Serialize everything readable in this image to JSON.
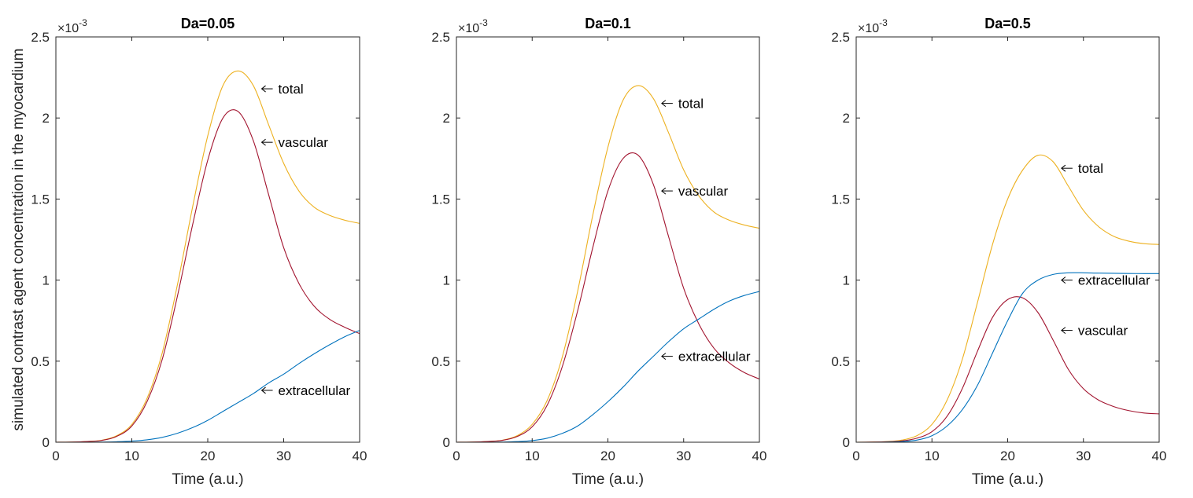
{
  "figure": {
    "ylabel": "simulated contrast agent concentration in the myocardium",
    "xlabel": "Time (a.u.)",
    "y_multiplier": {
      "base": "×10",
      "exponent": "-3"
    }
  },
  "colors": {
    "total": "#EDB120",
    "vascular": "#A2142F",
    "extracellular": "#0072BD",
    "axes": "#262626",
    "arrow": "#000000"
  },
  "chart_data": [
    {
      "type": "line",
      "title": "Da=0.05",
      "xlabel": "Time (a.u.)",
      "ylabel": "simulated contrast agent concentration in the myocardium",
      "xlim": [
        0,
        40
      ],
      "ylim": [
        0,
        2.5
      ],
      "y_scale_factor": "1e-3",
      "x_ticks": [
        "0",
        "10",
        "20",
        "30",
        "40"
      ],
      "y_ticks": [
        "0",
        "0.5",
        "1",
        "1.5",
        "2",
        "2.5"
      ],
      "grid": false,
      "x": [
        0,
        2,
        4,
        6,
        8,
        10,
        12,
        14,
        16,
        18,
        20,
        22,
        24,
        26,
        28,
        30,
        32,
        34,
        36,
        38,
        40
      ],
      "series": [
        {
          "name": "total",
          "color_key": "total",
          "values": [
            0,
            0.001,
            0.004,
            0.012,
            0.04,
            0.11,
            0.27,
            0.55,
            0.97,
            1.45,
            1.89,
            2.2,
            2.29,
            2.2,
            1.96,
            1.72,
            1.55,
            1.45,
            1.4,
            1.37,
            1.35
          ]
        },
        {
          "name": "vascular",
          "color_key": "vascular",
          "values": [
            0,
            0.001,
            0.004,
            0.011,
            0.036,
            0.1,
            0.25,
            0.51,
            0.9,
            1.34,
            1.74,
            2.0,
            2.04,
            1.86,
            1.53,
            1.2,
            0.98,
            0.84,
            0.76,
            0.71,
            0.67
          ]
        },
        {
          "name": "extracellular",
          "color_key": "extracellular",
          "values": [
            0,
            0,
            0,
            0.001,
            0.003,
            0.007,
            0.015,
            0.03,
            0.055,
            0.09,
            0.135,
            0.19,
            0.245,
            0.3,
            0.365,
            0.42,
            0.485,
            0.545,
            0.6,
            0.65,
            0.69
          ]
        }
      ],
      "annotations": [
        {
          "text": "total",
          "x": 27,
          "y": 2.18
        },
        {
          "text": "vascular",
          "x": 27,
          "y": 1.85
        },
        {
          "text": "extracellular",
          "x": 27,
          "y": 0.32
        }
      ]
    },
    {
      "type": "line",
      "title": "Da=0.1",
      "xlabel": "Time (a.u.)",
      "xlim": [
        0,
        40
      ],
      "ylim": [
        0,
        2.5
      ],
      "y_scale_factor": "1e-3",
      "x_ticks": [
        "0",
        "10",
        "20",
        "30",
        "40"
      ],
      "y_ticks": [
        "0",
        "0.5",
        "1",
        "1.5",
        "2",
        "2.5"
      ],
      "grid": false,
      "x": [
        0,
        2,
        4,
        6,
        8,
        10,
        12,
        14,
        16,
        18,
        20,
        22,
        24,
        26,
        28,
        30,
        32,
        34,
        36,
        38,
        40
      ],
      "series": [
        {
          "name": "total",
          "color_key": "total",
          "values": [
            0,
            0.001,
            0.004,
            0.012,
            0.04,
            0.11,
            0.26,
            0.53,
            0.93,
            1.4,
            1.82,
            2.11,
            2.2,
            2.12,
            1.91,
            1.68,
            1.52,
            1.42,
            1.37,
            1.34,
            1.32
          ]
        },
        {
          "name": "vascular",
          "color_key": "vascular",
          "values": [
            0,
            0.001,
            0.004,
            0.011,
            0.035,
            0.095,
            0.23,
            0.47,
            0.81,
            1.2,
            1.55,
            1.75,
            1.77,
            1.59,
            1.27,
            0.95,
            0.73,
            0.58,
            0.49,
            0.43,
            0.39
          ]
        },
        {
          "name": "extracellular",
          "color_key": "extracellular",
          "values": [
            0,
            0,
            0,
            0.001,
            0.004,
            0.01,
            0.025,
            0.055,
            0.1,
            0.17,
            0.25,
            0.34,
            0.44,
            0.53,
            0.62,
            0.7,
            0.76,
            0.82,
            0.87,
            0.905,
            0.93
          ]
        }
      ],
      "annotations": [
        {
          "text": "total",
          "x": 27,
          "y": 2.09
        },
        {
          "text": "vascular",
          "x": 27,
          "y": 1.55
        },
        {
          "text": "extracellular",
          "x": 27,
          "y": 0.53
        }
      ]
    },
    {
      "type": "line",
      "title": "Da=0.5",
      "xlabel": "Time (a.u.)",
      "xlim": [
        0,
        40
      ],
      "ylim": [
        0,
        2.5
      ],
      "y_scale_factor": "1e-3",
      "x_ticks": [
        "0",
        "10",
        "20",
        "30",
        "40"
      ],
      "y_ticks": [
        "0",
        "0.5",
        "1",
        "1.5",
        "2",
        "2.5"
      ],
      "grid": false,
      "x": [
        0,
        2,
        4,
        6,
        8,
        10,
        12,
        14,
        16,
        18,
        20,
        22,
        24,
        26,
        28,
        30,
        32,
        34,
        36,
        38,
        40
      ],
      "series": [
        {
          "name": "total",
          "color_key": "total",
          "values": [
            0,
            0.001,
            0.004,
            0.013,
            0.04,
            0.11,
            0.26,
            0.51,
            0.86,
            1.22,
            1.5,
            1.68,
            1.77,
            1.73,
            1.58,
            1.43,
            1.33,
            1.27,
            1.24,
            1.225,
            1.22
          ]
        },
        {
          "name": "vascular",
          "color_key": "vascular",
          "values": [
            0,
            0.001,
            0.003,
            0.008,
            0.025,
            0.065,
            0.16,
            0.33,
            0.56,
            0.77,
            0.88,
            0.89,
            0.8,
            0.63,
            0.45,
            0.33,
            0.26,
            0.22,
            0.195,
            0.18,
            0.175
          ]
        },
        {
          "name": "extracellular",
          "color_key": "extracellular",
          "values": [
            0,
            0,
            0.001,
            0.004,
            0.013,
            0.04,
            0.1,
            0.2,
            0.35,
            0.55,
            0.75,
            0.92,
            1.0,
            1.035,
            1.045,
            1.045,
            1.043,
            1.042,
            1.041,
            1.04,
            1.04
          ]
        }
      ],
      "annotations": [
        {
          "text": "total",
          "x": 27,
          "y": 1.69
        },
        {
          "text": "extracellular",
          "x": 27,
          "y": 1.0
        },
        {
          "text": "vascular",
          "x": 27,
          "y": 0.69
        }
      ]
    }
  ]
}
